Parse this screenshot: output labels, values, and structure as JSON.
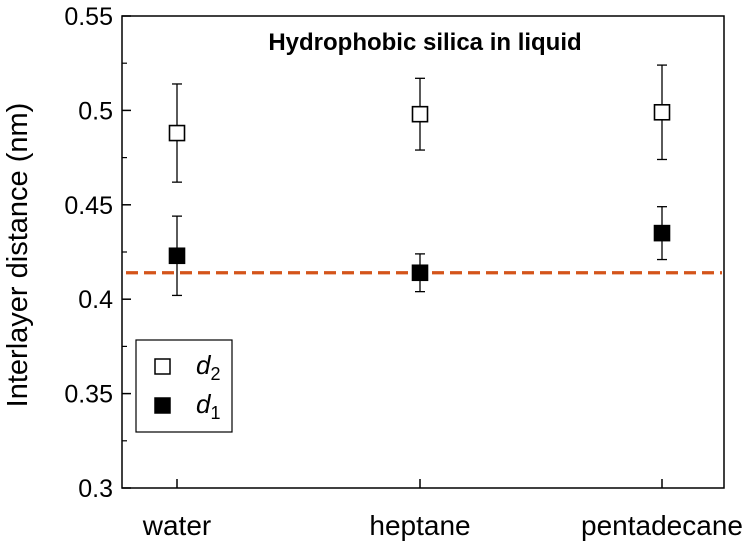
{
  "chart_data": {
    "type": "scatter",
    "title": "Hydrophobic silica in liquid",
    "xlabel": "",
    "ylabel": "Interlayer distance (nm)",
    "categories": [
      "water",
      "heptane",
      "pentadecane"
    ],
    "ylim": [
      0.3,
      0.55
    ],
    "yticks": [
      "0.3",
      "0.35",
      "0.4",
      "0.45",
      "0.5",
      "0.55"
    ],
    "grid": false,
    "legend_position": "bottom-left",
    "series": [
      {
        "name": "d2",
        "name_main": "d",
        "name_sub": "2",
        "marker": "open-square",
        "color": "#000000",
        "values": [
          0.488,
          0.498,
          0.499
        ],
        "errors": [
          0.026,
          0.019,
          0.025
        ]
      },
      {
        "name": "d1",
        "name_main": "d",
        "name_sub": "1",
        "marker": "filled-square",
        "color": "#000000",
        "values": [
          0.423,
          0.414,
          0.435
        ],
        "errors": [
          0.021,
          0.01,
          0.014
        ]
      }
    ],
    "reference_line": {
      "y": 0.414,
      "style": "dashed",
      "color": "#d4541a"
    }
  }
}
